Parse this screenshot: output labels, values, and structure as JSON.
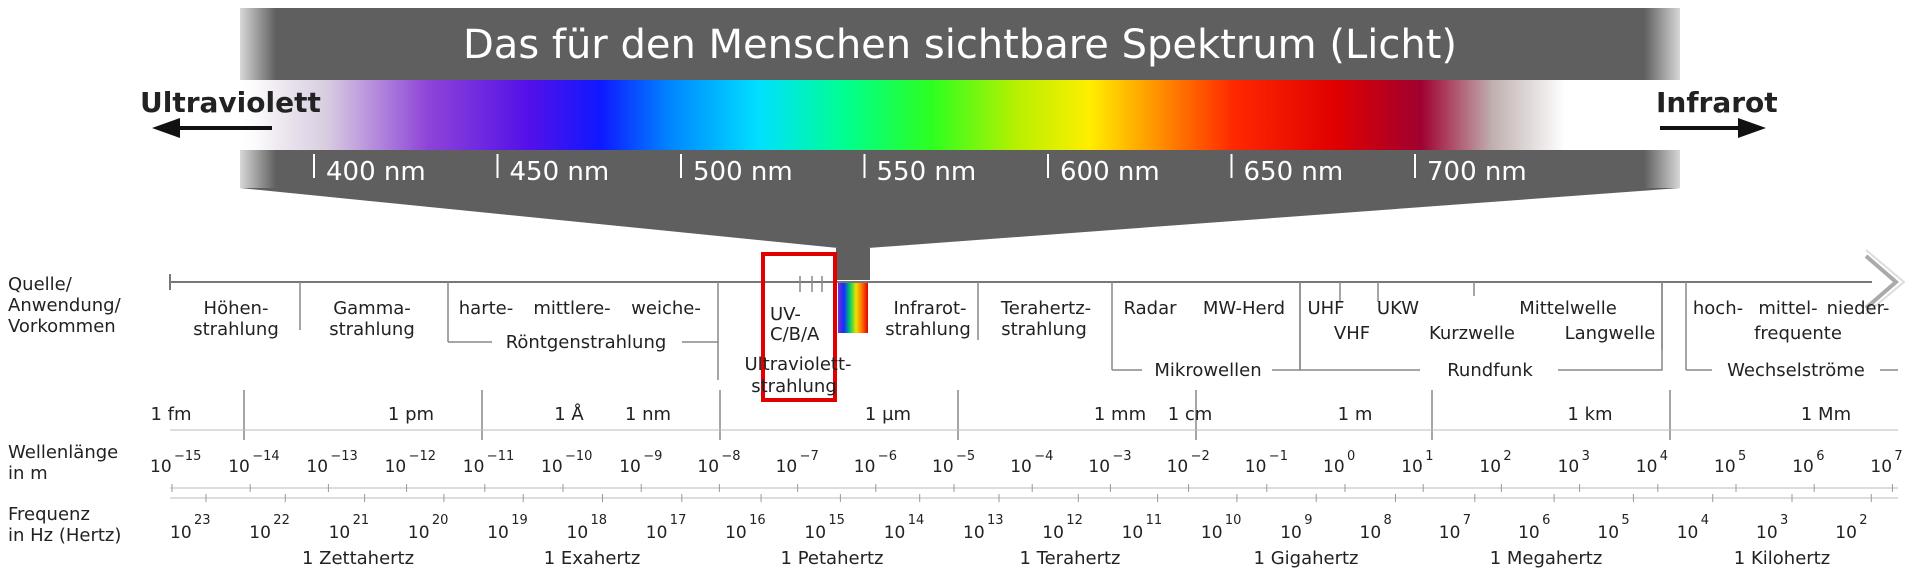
{
  "title": "Das für den Menschen sichtbare Spektrum (Licht)",
  "ultraviolet_label": "Ultraviolett",
  "infrared_label": "Infrarot",
  "visible_ticks": [
    "400 nm",
    "450 nm",
    "500 nm",
    "550 nm",
    "600 nm",
    "650 nm",
    "700 nm"
  ],
  "row_headers": {
    "source": [
      "Quelle/",
      "Anwendung/",
      "Vorkommen"
    ],
    "wavelength": [
      "Wellenlänge",
      "in m"
    ],
    "frequency": [
      "Frequenz",
      "in Hz (Hertz)"
    ]
  },
  "sources": {
    "hoehenstrahlung": [
      "Höhen-",
      "strahlung"
    ],
    "gammastrahlung": [
      "Gamma-",
      "strahlung"
    ],
    "xray_kinds": [
      "harte-",
      "mittlere-",
      "weiche-"
    ],
    "xray": "Röntgenstrahlung",
    "uv_cba": [
      "UV-",
      "C/B/A"
    ],
    "ultraviolettstrahlung": [
      "Ultraviolett-",
      "strahlung"
    ],
    "infrarotstrahlung": [
      "Infrarot-",
      "strahlung"
    ],
    "terahertzstrahlung": [
      "Terahertz-",
      "strahlung"
    ],
    "radar": "Radar",
    "mw_herd": "MW-Herd",
    "mikrowellen": "Mikrowellen",
    "uhf": "UHF",
    "vhf": "VHF",
    "ukw": "UKW",
    "kurzwelle": "Kurzwelle",
    "mittelwelle": "Mittelwelle",
    "langwelle": "Langwelle",
    "rundfunk": "Rundfunk",
    "hmn": [
      "hoch-",
      "mittel-",
      "nieder-"
    ],
    "frequente": "frequente",
    "wechselstroeme": "Wechselströme"
  },
  "length_units": [
    "1 fm",
    "1 pm",
    "1 Å",
    "1 nm",
    "1 µm",
    "1 mm",
    "1 cm",
    "1 m",
    "1 km",
    "1 Mm"
  ],
  "wavelength_exponents": [
    "−15",
    "−14",
    "−13",
    "−12",
    "−11",
    "−10",
    "−9",
    "−8",
    "−7",
    "−6",
    "−5",
    "−4",
    "−3",
    "−2",
    "−1",
    "0",
    "1",
    "2",
    "3",
    "4",
    "5",
    "6",
    "7"
  ],
  "frequency_exponents": [
    "23",
    "22",
    "21",
    "20",
    "19",
    "18",
    "17",
    "16",
    "15",
    "14",
    "13",
    "12",
    "11",
    "10",
    "9",
    "8",
    "7",
    "6",
    "5",
    "4",
    "3",
    "2"
  ],
  "frequency_units": [
    "1 Zettahertz",
    "1 Exahertz",
    "1 Petahertz",
    "1 Terahertz",
    "1 Gigahertz",
    "1 Megahertz",
    "1 Kilohertz"
  ],
  "base_label": "10",
  "colors": {
    "band": "#666666",
    "highlight": "#e00000"
  }
}
